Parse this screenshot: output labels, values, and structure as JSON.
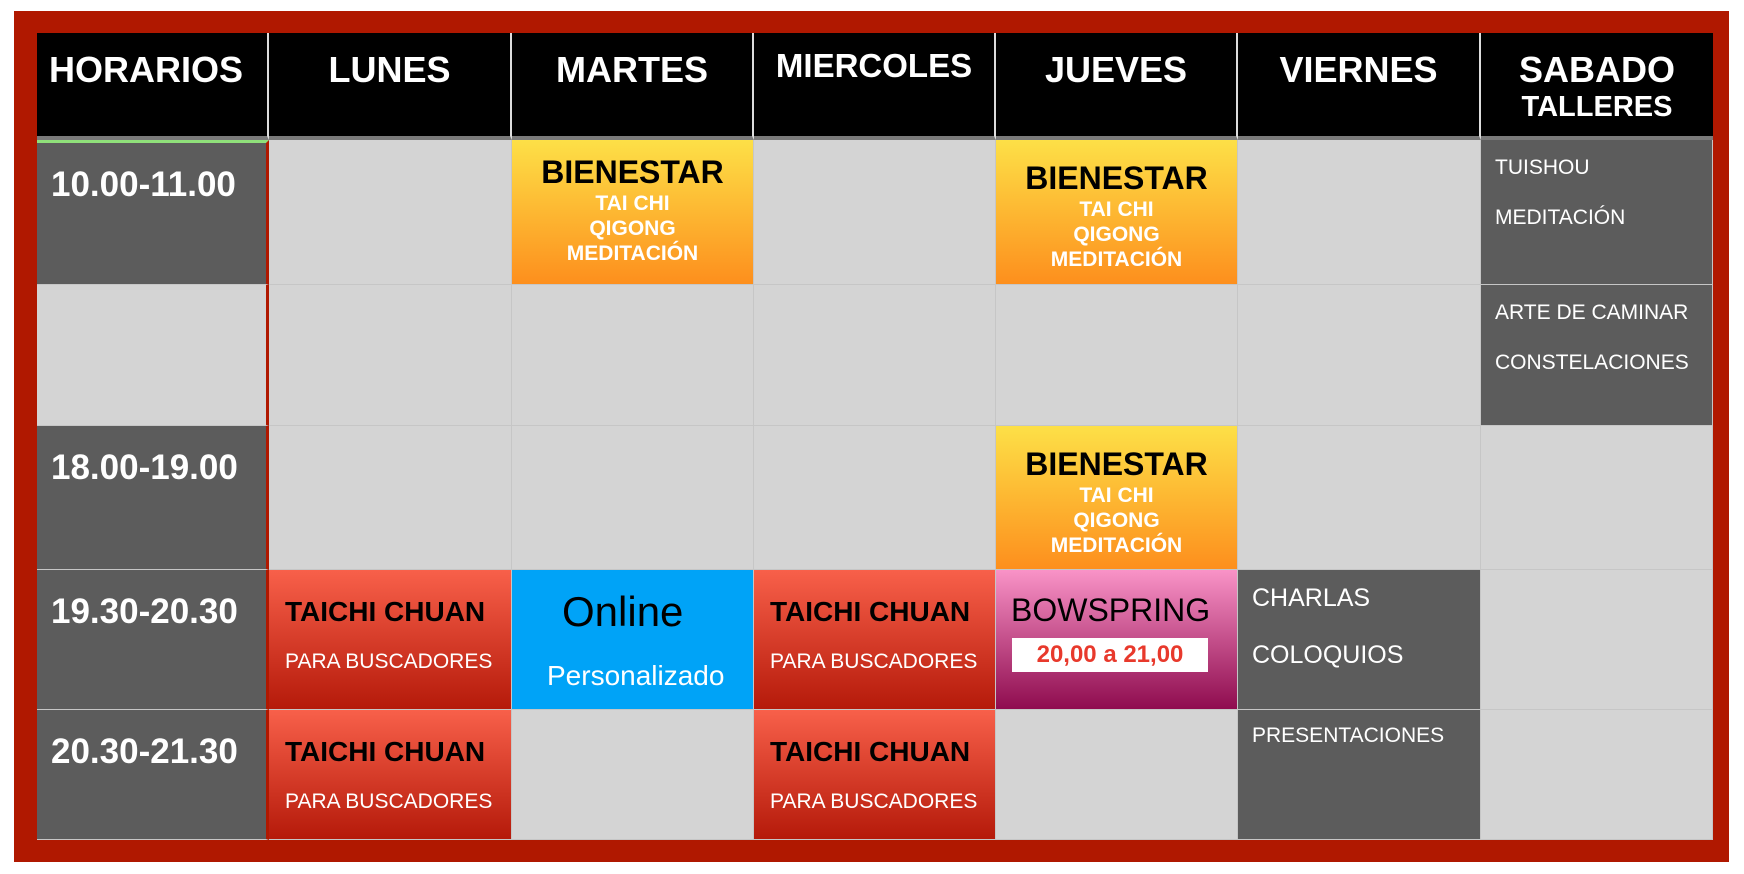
{
  "headers": [
    "HORARIOS",
    "LUNES",
    "MARTES",
    "MIERCOLES",
    "JUEVES",
    "VIERNES",
    "SABADO"
  ],
  "sabado_sub": "TALLERES",
  "times": [
    "10.00-11.00",
    "",
    "18.00-19.00",
    "19.30-20.30",
    "20.30-21.30"
  ],
  "bienestar": {
    "title": "BIENESTAR",
    "lines": [
      "TAI CHI",
      "QIGONG",
      "MEDITACIÓN"
    ]
  },
  "taichi": {
    "title": "TAICHI CHUAN",
    "sub": "PARA BUSCADORES"
  },
  "online": {
    "title": "Online",
    "sub": "Personalizado"
  },
  "bowspring": {
    "title": "BOWSPRING",
    "time": "20,00 a 21,00"
  },
  "talleres": [
    "TUISHOU",
    "MEDITACIÓN",
    "ARTE DE CAMINAR",
    "CONSTELACIONES"
  ],
  "viernes": [
    "CHARLAS",
    "COLOQUIOS",
    "PRESENTACIONES"
  ],
  "colors": {
    "frame": "#b01800",
    "bienestar": "#fd8f1d",
    "taichi": "#e0361f",
    "online": "#00a3f7",
    "bowspring": "#f993c7",
    "dark": "#5c5c5c"
  }
}
